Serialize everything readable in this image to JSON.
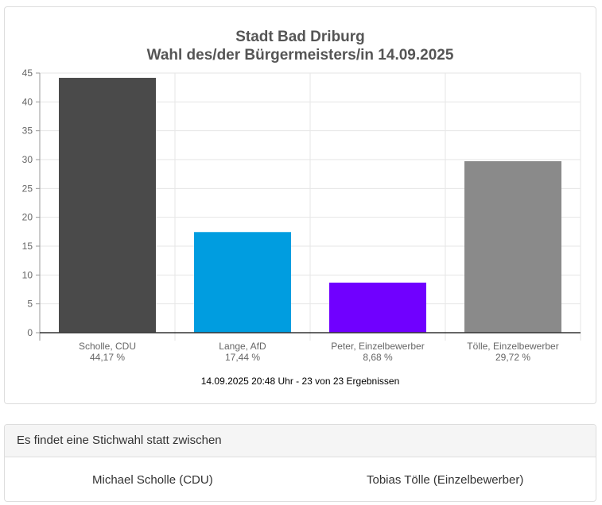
{
  "chart_data": {
    "type": "bar",
    "title": "Stadt Bad Driburg",
    "subtitle": "Wahl des/der Bürgermeisters/in 14.09.2025",
    "categories": [
      "Scholle, CDU",
      "Lange, AfD",
      "Peter, Einzelbewerber",
      "Tölle, Einzelbewerber"
    ],
    "value_labels": [
      "44,17 %",
      "17,44 %",
      "8,68 %",
      "29,72 %"
    ],
    "values": [
      44.17,
      17.44,
      8.68,
      29.72
    ],
    "colors": [
      "#4a4a4a",
      "#009de0",
      "#7000ff",
      "#8a8a8a"
    ],
    "ylim": [
      0,
      45
    ],
    "yticks": [
      0,
      5,
      10,
      15,
      20,
      25,
      30,
      35,
      40,
      45
    ],
    "grid": true,
    "xlabel": "",
    "ylabel": ""
  },
  "footnote": "14.09.2025 20:48 Uhr - 23 von 23 Ergebnissen",
  "runoff": {
    "header": "Es findet eine Stichwahl statt zwischen",
    "candidates": [
      "Michael Scholle (CDU)",
      "Tobias Tölle (Einzelbewerber)"
    ]
  }
}
